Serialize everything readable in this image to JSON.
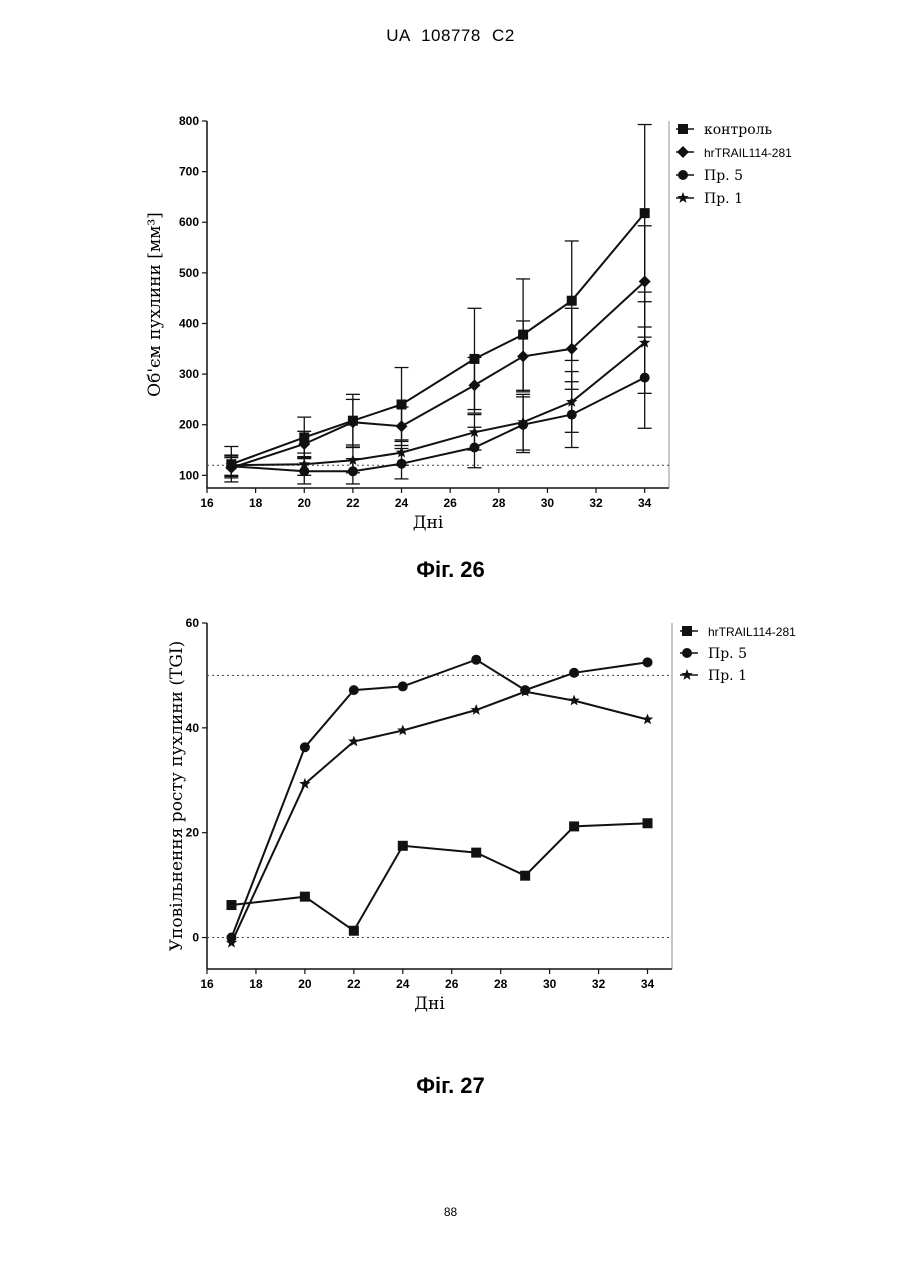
{
  "header": {
    "text": "UA   108778   C2"
  },
  "page_number": "88",
  "colors": {
    "ink": "#111111",
    "reference_line": "#444444"
  },
  "chart_data": [
    {
      "figure_label": "Фіг. 26",
      "type": "line",
      "title": "",
      "xlabel": "Дні",
      "ylabel": "Об'єм пухлини [мм³]",
      "xlim": [
        16,
        35
      ],
      "ylim": [
        75,
        800
      ],
      "xticks": [
        16,
        18,
        20,
        22,
        24,
        26,
        28,
        30,
        32,
        34
      ],
      "yticks": [
        100,
        200,
        300,
        400,
        500,
        600,
        700,
        800
      ],
      "grid": false,
      "legend_position": "right",
      "reference_line": {
        "style": "dotted",
        "y": 120
      },
      "x": [
        17,
        20,
        22,
        24,
        27,
        29,
        31,
        34
      ],
      "series": [
        {
          "name": "контроль",
          "marker": "square",
          "values": [
            122,
            175,
            208,
            240,
            330,
            378,
            445,
            618
          ],
          "errors": [
            35,
            40,
            52,
            73,
            100,
            110,
            118,
            175
          ]
        },
        {
          "name": "hrTRAIL114-281",
          "marker": "diamond",
          "values": [
            115,
            162,
            205,
            197,
            278,
            335,
            350,
            483
          ],
          "errors": [
            20,
            25,
            45,
            38,
            55,
            70,
            80,
            110
          ]
        },
        {
          "name": "Пр. 5",
          "marker": "circle",
          "values": [
            118,
            108,
            108,
            123,
            155,
            200,
            220,
            293
          ],
          "errors": [
            20,
            25,
            25,
            30,
            40,
            55,
            65,
            100
          ]
        },
        {
          "name": "Пр. 1",
          "marker": "star",
          "values": [
            120,
            122,
            130,
            145,
            185,
            205,
            245,
            362
          ],
          "errors": [
            20,
            22,
            25,
            25,
            35,
            55,
            60,
            100
          ]
        }
      ]
    },
    {
      "figure_label": "Фіг. 27",
      "type": "line",
      "title": "",
      "xlabel": "Дні",
      "ylabel": "Уповільнення росту пухлини (TGI)",
      "xlim": [
        16,
        35
      ],
      "ylim": [
        -6,
        60
      ],
      "xticks": [
        16,
        18,
        20,
        22,
        24,
        26,
        28,
        30,
        32,
        34
      ],
      "yticks": [
        0,
        20,
        40,
        60
      ],
      "grid": false,
      "legend_position": "right",
      "reference_lines": [
        {
          "style": "dotted",
          "y": 50
        },
        {
          "style": "dotted",
          "y": 0
        }
      ],
      "x": [
        17,
        20,
        22,
        24,
        27,
        29,
        31,
        34
      ],
      "series": [
        {
          "name": "hrTRAIL114-281",
          "marker": "square",
          "values": [
            6.2,
            7.8,
            1.3,
            17.5,
            16.2,
            11.8,
            21.2,
            21.8
          ]
        },
        {
          "name": "Пр. 5",
          "marker": "circle",
          "values": [
            0,
            36.3,
            47.2,
            47.9,
            53.0,
            47.2,
            50.5,
            52.5
          ]
        },
        {
          "name": "Пр. 1",
          "marker": "star",
          "values": [
            -1,
            29.3,
            37.4,
            39.5,
            43.4,
            46.9,
            45.2,
            41.6
          ]
        }
      ]
    }
  ]
}
